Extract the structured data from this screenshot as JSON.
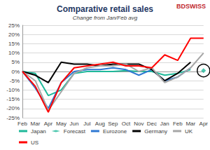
{
  "chart_data": {
    "type": "line",
    "title": "Comparative retail sales",
    "subtitle": "Change from Jan/Feb avg",
    "annotations": [
      "BDSWISS"
    ],
    "categories": [
      "Feb",
      "Mar",
      "Apr",
      "May",
      "Jun",
      "Jul",
      "Aug",
      "Sep",
      "Oct",
      "Nov",
      "Dec",
      "Jan",
      "Feb",
      "Mar",
      "Apr"
    ],
    "series": [
      {
        "name": "Japan",
        "color": "#1fb99a",
        "type": "line",
        "values": [
          0,
          -1,
          -13,
          -10,
          -1,
          0,
          0,
          0,
          0.5,
          0,
          0,
          -2,
          -1,
          1,
          null
        ]
      },
      {
        "name": "Forecast",
        "color": "#1fb99a",
        "type": "scatter",
        "marker": "diamond",
        "values": [
          null,
          null,
          null,
          null,
          null,
          null,
          null,
          null,
          null,
          null,
          null,
          null,
          null,
          null,
          0.5
        ]
      },
      {
        "name": "Eurozone",
        "color": "#2e78d2",
        "type": "line",
        "values": [
          0,
          -9,
          -20,
          -6,
          0,
          1,
          1,
          2,
          1,
          -2,
          1,
          -5,
          -3,
          2,
          null
        ]
      },
      {
        "name": "Germany",
        "color": "#000000",
        "type": "line",
        "values": [
          0,
          -2,
          -6,
          5,
          4,
          4,
          3,
          4,
          4,
          4,
          1,
          -5,
          -1,
          5,
          null
        ]
      },
      {
        "name": "UK",
        "color": "#a6a6a6",
        "type": "line",
        "values": [
          0,
          -5,
          -21,
          -11,
          -1,
          2,
          3,
          3,
          4,
          0,
          2,
          -6,
          -3,
          2,
          10
        ]
      },
      {
        "name": "US",
        "color": "#ff0000",
        "type": "line",
        "values": [
          0,
          -8,
          -22,
          -6,
          2,
          3,
          4,
          5,
          3,
          3,
          2,
          9,
          6,
          18,
          18
        ]
      }
    ],
    "ylim": [
      -25,
      25
    ],
    "yticks": [
      {
        "value": -25,
        "label": "-25%"
      },
      {
        "value": -20,
        "label": "-20%"
      },
      {
        "value": -15,
        "label": "-15%"
      },
      {
        "value": -10,
        "label": "-10%"
      },
      {
        "value": -5,
        "label": "-5%"
      },
      {
        "value": 0,
        "label": "0%"
      },
      {
        "value": 5,
        "label": "5%"
      },
      {
        "value": 10,
        "label": "10%"
      },
      {
        "value": 15,
        "label": "15%"
      },
      {
        "value": 20,
        "label": "20%"
      },
      {
        "value": 25,
        "label": "25%"
      }
    ],
    "grid": true,
    "legend": "bottom"
  }
}
